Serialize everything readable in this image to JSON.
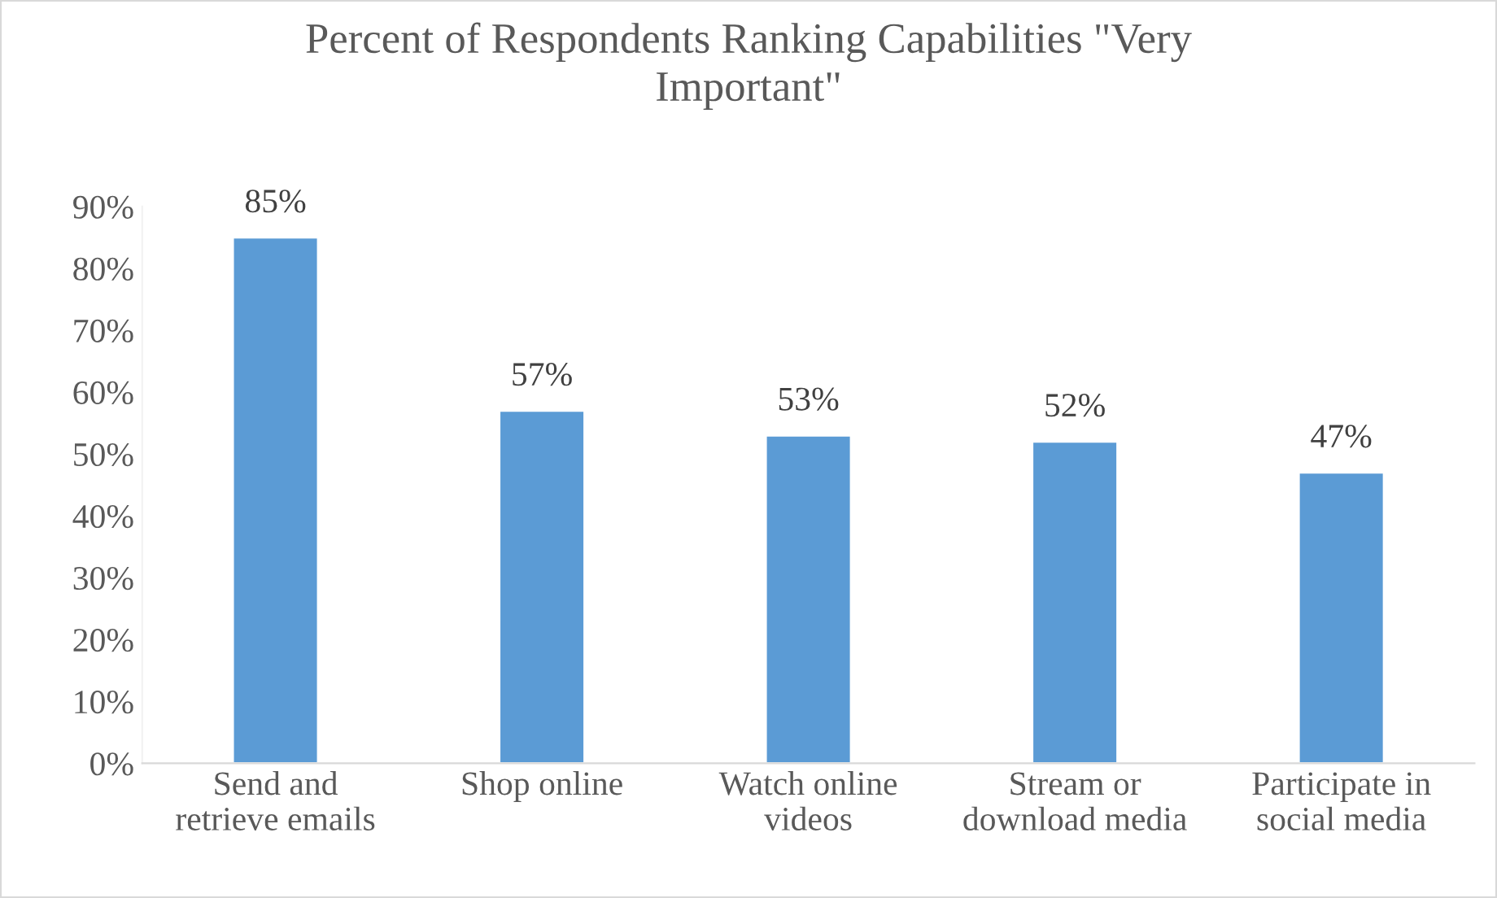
{
  "chart_data": {
    "type": "bar",
    "title": "Percent of Respondents Ranking Capabilities \"Very Important\"",
    "categories": [
      "Send and retrieve emails",
      "Shop online",
      "Watch online videos",
      "Stream or download media",
      "Participate in social media"
    ],
    "values": [
      85,
      57,
      53,
      52,
      47
    ],
    "value_labels": [
      "85%",
      "57%",
      "53%",
      "52%",
      "47%"
    ],
    "color": "#5b9bd5",
    "ylim": [
      0,
      90
    ],
    "yticks": [
      {
        "value": 0,
        "label": "0%"
      },
      {
        "value": 10,
        "label": "10%"
      },
      {
        "value": 20,
        "label": "20%"
      },
      {
        "value": 30,
        "label": "30%"
      },
      {
        "value": 40,
        "label": "40%"
      },
      {
        "value": 50,
        "label": "50%"
      },
      {
        "value": 60,
        "label": "60%"
      },
      {
        "value": 70,
        "label": "70%"
      },
      {
        "value": 80,
        "label": "80%"
      },
      {
        "value": 90,
        "label": "90%"
      }
    ],
    "grid": false,
    "legend": false
  }
}
